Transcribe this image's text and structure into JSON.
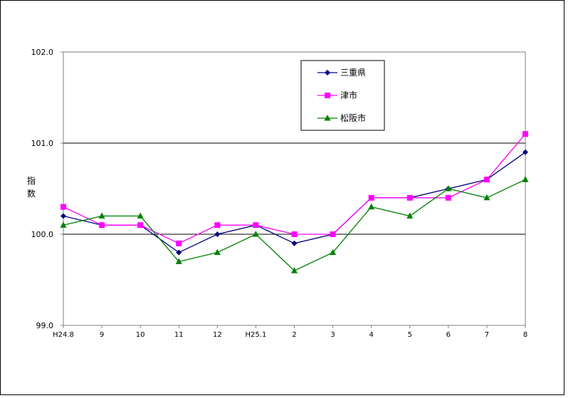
{
  "chart_data": {
    "type": "line",
    "title": "",
    "xlabel": "",
    "ylabel": "指数",
    "categories": [
      "H24.8",
      "9",
      "10",
      "11",
      "12",
      "H25.1",
      "2",
      "3",
      "4",
      "5",
      "6",
      "7",
      "8"
    ],
    "ylim": [
      99.0,
      102.0
    ],
    "yticks": [
      "99.0",
      "100.0",
      "101.0",
      "102.0"
    ],
    "grid_y": [
      100.0,
      101.0
    ],
    "legend_position": "top-right",
    "series": [
      {
        "name": "三重県",
        "color": "#000080",
        "marker": "diamond",
        "values": [
          100.2,
          100.1,
          100.1,
          99.8,
          100.0,
          100.1,
          99.9,
          100.0,
          100.4,
          100.4,
          100.5,
          100.6,
          100.9
        ]
      },
      {
        "name": "津市",
        "color": "#ff00ff",
        "marker": "square",
        "values": [
          100.3,
          100.1,
          100.1,
          99.9,
          100.1,
          100.1,
          100.0,
          100.0,
          100.4,
          100.4,
          100.4,
          100.6,
          101.1
        ]
      },
      {
        "name": "松阪市",
        "color": "#008000",
        "marker": "triangle",
        "values": [
          100.1,
          100.2,
          100.2,
          99.7,
          99.8,
          100.0,
          99.6,
          99.8,
          100.3,
          100.2,
          100.5,
          100.4,
          100.6
        ]
      }
    ]
  }
}
